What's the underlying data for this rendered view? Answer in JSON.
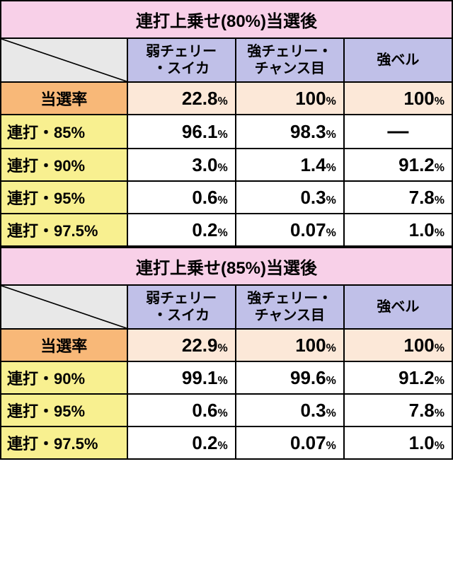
{
  "colors": {
    "title_bg": "#f8d0e8",
    "header_bg": "#c0c0e8",
    "diag_bg": "#e8e8e8",
    "orange_label_bg": "#f8b878",
    "yellow_label_bg": "#f8f090",
    "orange_cell_bg": "#fce8d8",
    "white_cell_bg": "#ffffff",
    "border": "#000000"
  },
  "typography": {
    "title_fontsize": 24,
    "header_fontsize": 20,
    "rowlabel_fontsize": 22,
    "number_fontsize": 26,
    "percent_fontsize": 16
  },
  "col_widths": [
    "28%",
    "24%",
    "24%",
    "24%"
  ],
  "tables": [
    {
      "title": "連打上乗せ(80%)当選後",
      "columns": [
        "弱チェリー\n・スイカ",
        "強チェリー・\nチャンス目",
        "強ベル"
      ],
      "rate_row": {
        "label": "当選率",
        "values": [
          "22.8",
          "100",
          "100"
        ]
      },
      "rows": [
        {
          "label": "連打・85%",
          "values": [
            "96.1",
            "98.3",
            null
          ]
        },
        {
          "label": "連打・90%",
          "values": [
            "3.0",
            "1.4",
            "91.2"
          ]
        },
        {
          "label": "連打・95%",
          "values": [
            "0.6",
            "0.3",
            "7.8"
          ]
        },
        {
          "label": "連打・97.5%",
          "values": [
            "0.2",
            "0.07",
            "1.0"
          ]
        }
      ]
    },
    {
      "title": "連打上乗せ(85%)当選後",
      "columns": [
        "弱チェリー\n・スイカ",
        "強チェリー・\nチャンス目",
        "強ベル"
      ],
      "rate_row": {
        "label": "当選率",
        "values": [
          "22.9",
          "100",
          "100"
        ]
      },
      "rows": [
        {
          "label": "連打・90%",
          "values": [
            "99.1",
            "99.6",
            "91.2"
          ]
        },
        {
          "label": "連打・95%",
          "values": [
            "0.6",
            "0.3",
            "7.8"
          ]
        },
        {
          "label": "連打・97.5%",
          "values": [
            "0.2",
            "0.07",
            "1.0"
          ]
        }
      ]
    }
  ]
}
